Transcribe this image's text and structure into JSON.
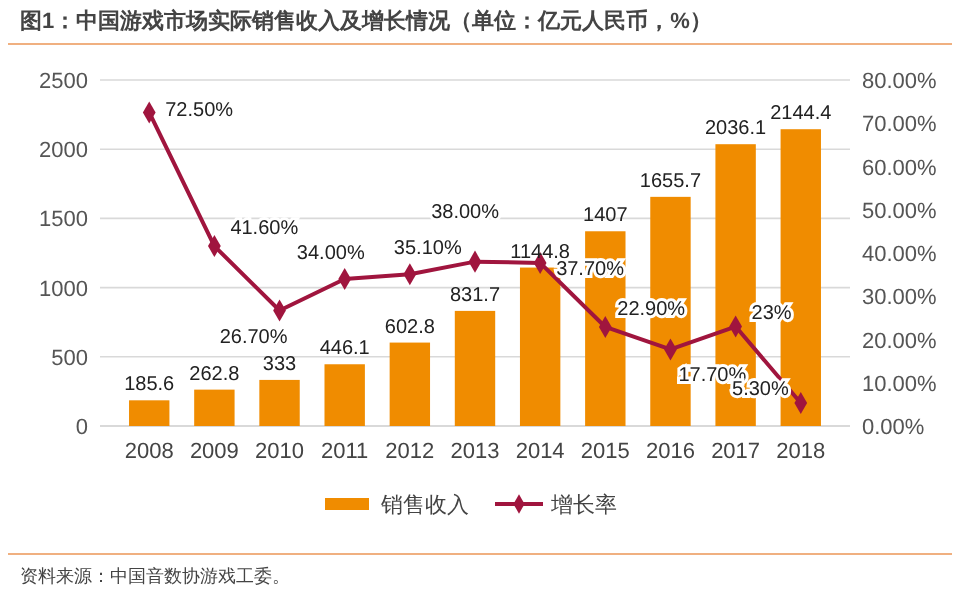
{
  "chart_data": {
    "type": "bar",
    "title": "图1：中国游戏市场实际销售收入及增长情况（单位：亿元人民币，%）",
    "annotations": [
      "资料来源：中国音数协游戏工委。"
    ],
    "categories": [
      "2008",
      "2009",
      "2010",
      "2011",
      "2012",
      "2013",
      "2014",
      "2015",
      "2016",
      "2017",
      "2018"
    ],
    "series": [
      {
        "name": "销售收入",
        "type": "bar",
        "color": "#f08c00",
        "values": [
          185.6,
          262.8,
          333,
          446.1,
          602.8,
          831.7,
          1144.8,
          1407,
          1655.7,
          2036.1,
          2144.4
        ],
        "value_labels": [
          "185.6",
          "262.8",
          "333",
          "446.1",
          "602.8",
          "831.7",
          "1144.8",
          "1407",
          "1655.7",
          "2036.1",
          "2144.4"
        ]
      },
      {
        "name": "增长率",
        "type": "line",
        "axis": "y2",
        "color": "#a0153e",
        "marker": "diamond",
        "values": [
          72.5,
          41.6,
          26.7,
          34,
          35.1,
          38,
          37.7,
          22.9,
          17.7,
          23,
          5.3
        ],
        "value_labels": [
          "72.50%",
          "41.60%",
          "26.70%",
          "34.00%",
          "35.10%",
          "38.00%",
          "37.70%",
          "22.90%",
          "17.70%",
          "23%",
          "5.30%"
        ]
      }
    ],
    "ylim": [
      0,
      2500
    ],
    "yticks": [
      0,
      500,
      1000,
      1500,
      2000,
      2500
    ],
    "y2lim": [
      0,
      80
    ],
    "y2ticks": [
      {
        "value": 0,
        "label": "0.00%"
      },
      {
        "value": 10,
        "label": "10.00%"
      },
      {
        "value": 20,
        "label": "20.00%"
      },
      {
        "value": 30,
        "label": "30.00%"
      },
      {
        "value": 40,
        "label": "40.00%"
      },
      {
        "value": 50,
        "label": "50.00%"
      },
      {
        "value": 60,
        "label": "60.00%"
      },
      {
        "value": 70,
        "label": "70.00%"
      },
      {
        "value": 80,
        "label": "80.00%"
      }
    ],
    "grid": "y",
    "legend": "bottom"
  }
}
